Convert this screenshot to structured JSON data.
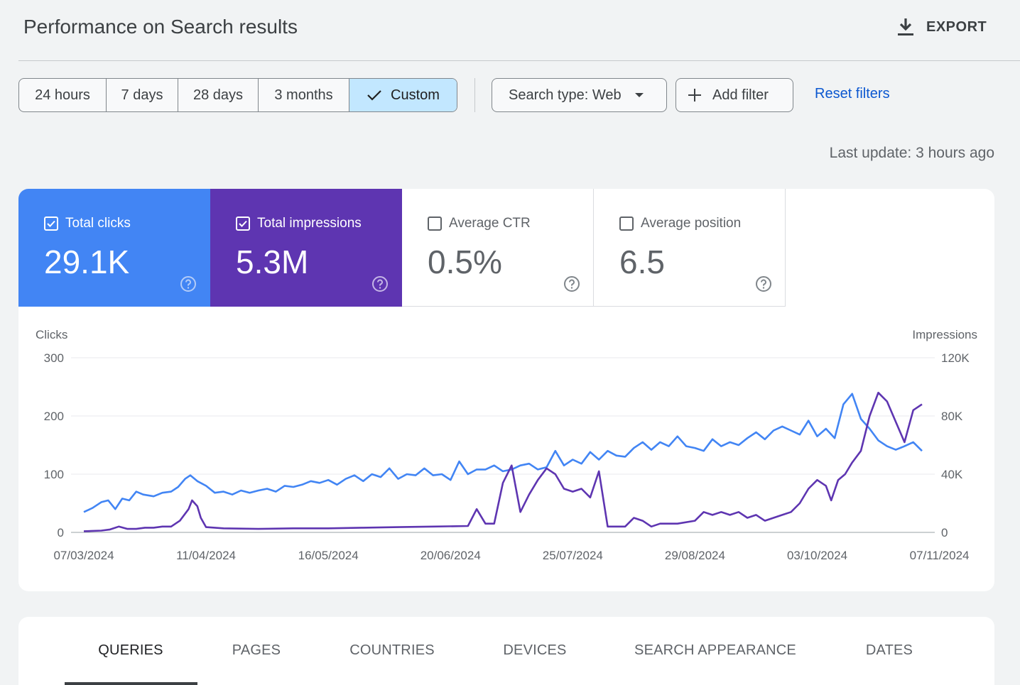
{
  "header": {
    "title": "Performance on Search results",
    "export_label": "EXPORT"
  },
  "filters": {
    "ranges": [
      "24 hours",
      "7 days",
      "28 days",
      "3 months",
      "Custom"
    ],
    "selected_range": "Custom",
    "search_type": "Search type: Web",
    "add_filter": "Add filter",
    "reset": "Reset filters"
  },
  "last_update": "Last update: 3 hours ago",
  "metrics": [
    {
      "label": "Total clicks",
      "value": "29.1K",
      "checked": true,
      "color": "#4285f4"
    },
    {
      "label": "Total impressions",
      "value": "5.3M",
      "checked": true,
      "color": "#5e35b1"
    },
    {
      "label": "Average CTR",
      "value": "0.5%",
      "checked": false
    },
    {
      "label": "Average position",
      "value": "6.5",
      "checked": false
    }
  ],
  "chart_data": {
    "type": "line",
    "ylabel_left": "Clicks",
    "ylabel_right": "Impressions",
    "yticks_left": [
      "300",
      "200",
      "100",
      "0"
    ],
    "yticks_right": [
      "120K",
      "80K",
      "40K",
      "0"
    ],
    "ylim_left": [
      0,
      300
    ],
    "ylim_right": [
      0,
      120000
    ],
    "x_tick_labels": [
      "07/03/2024",
      "11/04/2024",
      "16/05/2024",
      "20/06/2024",
      "25/07/2024",
      "29/08/2024",
      "03/10/2024",
      "07/11/2024"
    ],
    "x_range_dates": [
      "07/03/2024",
      "12/12/2024"
    ],
    "grid": true,
    "series": [
      {
        "name": "Total clicks",
        "axis": "left",
        "color": "#4285f4",
        "points": [
          [
            0,
            35
          ],
          [
            5,
            42
          ],
          [
            10,
            52
          ],
          [
            14,
            55
          ],
          [
            18,
            40
          ],
          [
            22,
            58
          ],
          [
            26,
            55
          ],
          [
            30,
            70
          ],
          [
            34,
            65
          ],
          [
            40,
            62
          ],
          [
            45,
            68
          ],
          [
            50,
            70
          ],
          [
            54,
            78
          ],
          [
            58,
            92
          ],
          [
            61,
            98
          ],
          [
            65,
            88
          ],
          [
            70,
            80
          ],
          [
            75,
            68
          ],
          [
            80,
            70
          ],
          [
            85,
            65
          ],
          [
            90,
            72
          ],
          [
            95,
            68
          ],
          [
            100,
            72
          ],
          [
            105,
            75
          ],
          [
            110,
            70
          ],
          [
            115,
            80
          ],
          [
            120,
            78
          ],
          [
            125,
            82
          ],
          [
            130,
            88
          ],
          [
            135,
            85
          ],
          [
            140,
            90
          ],
          [
            145,
            82
          ],
          [
            150,
            92
          ],
          [
            155,
            98
          ],
          [
            160,
            88
          ],
          [
            165,
            100
          ],
          [
            170,
            95
          ],
          [
            175,
            110
          ],
          [
            180,
            92
          ],
          [
            185,
            100
          ],
          [
            190,
            98
          ],
          [
            195,
            110
          ],
          [
            200,
            98
          ],
          [
            205,
            100
          ],
          [
            210,
            90
          ],
          [
            215,
            122
          ],
          [
            220,
            100
          ],
          [
            225,
            108
          ],
          [
            230,
            108
          ],
          [
            235,
            115
          ],
          [
            240,
            105
          ],
          [
            245,
            108
          ],
          [
            250,
            115
          ],
          [
            255,
            118
          ],
          [
            260,
            108
          ],
          [
            265,
            112
          ],
          [
            270,
            140
          ],
          [
            275,
            115
          ],
          [
            280,
            125
          ],
          [
            285,
            118
          ],
          [
            290,
            138
          ],
          [
            295,
            125
          ],
          [
            300,
            140
          ],
          [
            305,
            132
          ],
          [
            310,
            130
          ],
          [
            315,
            145
          ],
          [
            320,
            155
          ],
          [
            325,
            142
          ],
          [
            330,
            155
          ],
          [
            335,
            148
          ],
          [
            340,
            165
          ],
          [
            345,
            148
          ],
          [
            350,
            145
          ],
          [
            355,
            140
          ],
          [
            360,
            160
          ],
          [
            365,
            148
          ],
          [
            370,
            155
          ],
          [
            375,
            150
          ],
          [
            380,
            162
          ],
          [
            385,
            172
          ],
          [
            390,
            160
          ],
          [
            395,
            175
          ],
          [
            400,
            182
          ],
          [
            405,
            175
          ],
          [
            410,
            168
          ],
          [
            415,
            192
          ],
          [
            420,
            165
          ],
          [
            425,
            178
          ],
          [
            430,
            162
          ],
          [
            435,
            220
          ],
          [
            440,
            238
          ],
          [
            445,
            195
          ],
          [
            450,
            178
          ],
          [
            455,
            158
          ],
          [
            460,
            148
          ],
          [
            465,
            142
          ],
          [
            470,
            148
          ],
          [
            475,
            155
          ],
          [
            480,
            140
          ]
        ]
      },
      {
        "name": "Total impressions",
        "axis": "right",
        "color": "#5e35b1",
        "points": [
          [
            0,
            800
          ],
          [
            10,
            1200
          ],
          [
            15,
            2000
          ],
          [
            20,
            4000
          ],
          [
            25,
            2400
          ],
          [
            30,
            2400
          ],
          [
            35,
            3200
          ],
          [
            40,
            3200
          ],
          [
            45,
            4000
          ],
          [
            50,
            4000
          ],
          [
            55,
            8000
          ],
          [
            60,
            16000
          ],
          [
            62,
            22000
          ],
          [
            65,
            18000
          ],
          [
            67,
            10000
          ],
          [
            70,
            3600
          ],
          [
            80,
            2800
          ],
          [
            100,
            2400
          ],
          [
            120,
            2800
          ],
          [
            140,
            2800
          ],
          [
            160,
            3200
          ],
          [
            180,
            3600
          ],
          [
            200,
            4000
          ],
          [
            220,
            4400
          ],
          [
            225,
            16000
          ],
          [
            230,
            6000
          ],
          [
            235,
            6000
          ],
          [
            240,
            34000
          ],
          [
            245,
            46000
          ],
          [
            250,
            14000
          ],
          [
            255,
            26000
          ],
          [
            260,
            36000
          ],
          [
            265,
            44000
          ],
          [
            270,
            40000
          ],
          [
            275,
            30000
          ],
          [
            280,
            28000
          ],
          [
            285,
            30000
          ],
          [
            290,
            24000
          ],
          [
            295,
            42000
          ],
          [
            300,
            4000
          ],
          [
            305,
            4000
          ],
          [
            310,
            4000
          ],
          [
            315,
            10000
          ],
          [
            320,
            8000
          ],
          [
            325,
            4000
          ],
          [
            330,
            6000
          ],
          [
            340,
            6000
          ],
          [
            350,
            8000
          ],
          [
            355,
            14000
          ],
          [
            360,
            12000
          ],
          [
            365,
            14000
          ],
          [
            370,
            12000
          ],
          [
            375,
            14000
          ],
          [
            380,
            10000
          ],
          [
            385,
            12000
          ],
          [
            390,
            8000
          ],
          [
            395,
            10000
          ],
          [
            400,
            12000
          ],
          [
            405,
            14000
          ],
          [
            410,
            20000
          ],
          [
            415,
            30000
          ],
          [
            420,
            36000
          ],
          [
            425,
            32000
          ],
          [
            428,
            22000
          ],
          [
            432,
            36000
          ],
          [
            436,
            40000
          ],
          [
            440,
            48000
          ],
          [
            445,
            56000
          ],
          [
            450,
            80000
          ],
          [
            455,
            96000
          ],
          [
            460,
            90000
          ],
          [
            465,
            76000
          ],
          [
            470,
            62000
          ],
          [
            475,
            84000
          ],
          [
            480,
            88000
          ]
        ]
      }
    ]
  },
  "tabs": [
    "QUERIES",
    "PAGES",
    "COUNTRIES",
    "DEVICES",
    "SEARCH APPEARANCE",
    "DATES"
  ],
  "active_tab": "QUERIES"
}
